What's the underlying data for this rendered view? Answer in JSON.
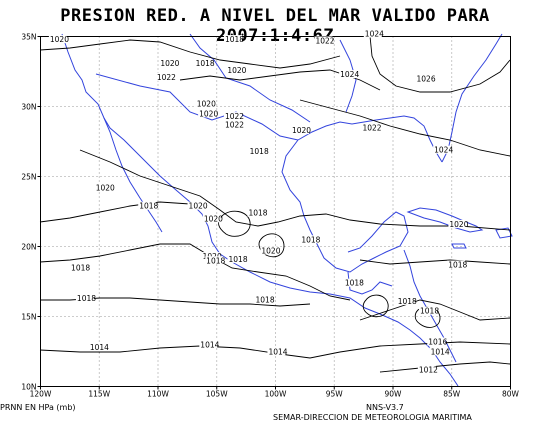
{
  "title": "PRESION RED. A NIVEL DEL MAR VALIDO PARA 2007:1:4:6Z",
  "footer": {
    "units": "PRNN EN HPa (mb)",
    "model": "NNS-V3.7",
    "credit": "SEMAR-DIRECCION DE METEOROLOGIA MARITIMA"
  },
  "map": {
    "lon_range": [
      -120,
      -80
    ],
    "lat_range": [
      10,
      35
    ],
    "lon_ticks": [
      "120W",
      "115W",
      "110W",
      "105W",
      "100W",
      "95W",
      "90W",
      "85W",
      "80W"
    ],
    "lat_ticks": [
      "10N",
      "15N",
      "20N",
      "25N",
      "30N",
      "35N"
    ],
    "grid": true,
    "coastline_color": "#3344dd",
    "contour_color": "#000000",
    "isobar_labels": [
      {
        "text": "1020",
        "lon": -119.2,
        "lat": 34.6
      },
      {
        "text": "1018",
        "lon": -104.3,
        "lat": 34.6
      },
      {
        "text": "1022",
        "lon": -96.6,
        "lat": 34.5
      },
      {
        "text": "1024",
        "lon": -92.4,
        "lat": 35.0
      },
      {
        "text": "1020",
        "lon": -109.8,
        "lat": 32.9
      },
      {
        "text": "1018",
        "lon": -106.8,
        "lat": 32.9
      },
      {
        "text": "1020",
        "lon": -104.1,
        "lat": 32.4
      },
      {
        "text": "1024",
        "lon": -94.5,
        "lat": 32.1
      },
      {
        "text": "1026",
        "lon": -88.0,
        "lat": 31.8
      },
      {
        "text": "1022",
        "lon": -110.1,
        "lat": 31.9
      },
      {
        "text": "1020",
        "lon": -106.7,
        "lat": 30.0
      },
      {
        "text": "1020",
        "lon": -106.5,
        "lat": 29.3
      },
      {
        "text": "1022",
        "lon": -104.3,
        "lat": 29.1
      },
      {
        "text": "1022",
        "lon": -104.3,
        "lat": 28.5
      },
      {
        "text": "1020",
        "lon": -98.6,
        "lat": 28.1
      },
      {
        "text": "1022",
        "lon": -92.6,
        "lat": 28.3
      },
      {
        "text": "1018",
        "lon": -102.2,
        "lat": 26.6
      },
      {
        "text": "1024",
        "lon": -86.5,
        "lat": 26.7
      },
      {
        "text": "1020",
        "lon": -115.3,
        "lat": 24.0
      },
      {
        "text": "1018",
        "lon": -111.6,
        "lat": 22.7
      },
      {
        "text": "1020",
        "lon": -107.4,
        "lat": 22.7
      },
      {
        "text": "1020",
        "lon": -106.1,
        "lat": 21.8
      },
      {
        "text": "1018",
        "lon": -102.3,
        "lat": 22.2
      },
      {
        "text": "1020",
        "lon": -85.2,
        "lat": 21.4
      },
      {
        "text": "1018",
        "lon": -97.8,
        "lat": 20.3
      },
      {
        "text": "1020",
        "lon": -101.2,
        "lat": 19.5
      },
      {
        "text": "1020",
        "lon": -106.2,
        "lat": 19.1
      },
      {
        "text": "1018",
        "lon": -105.9,
        "lat": 18.8
      },
      {
        "text": "1018",
        "lon": -104.0,
        "lat": 18.9
      },
      {
        "text": "1018",
        "lon": -117.4,
        "lat": 18.3
      },
      {
        "text": "1018",
        "lon": -85.3,
        "lat": 18.5
      },
      {
        "text": "1018",
        "lon": -94.1,
        "lat": 17.2
      },
      {
        "text": "1018",
        "lon": -101.7,
        "lat": 16.0
      },
      {
        "text": "1018",
        "lon": -116.9,
        "lat": 16.1
      },
      {
        "text": "1018",
        "lon": -89.6,
        "lat": 15.9
      },
      {
        "text": "1018",
        "lon": -87.7,
        "lat": 15.2
      },
      {
        "text": "1014",
        "lon": -115.8,
        "lat": 12.6
      },
      {
        "text": "1014",
        "lon": -106.4,
        "lat": 12.8
      },
      {
        "text": "1014",
        "lon": -100.6,
        "lat": 12.3
      },
      {
        "text": "1016",
        "lon": -87.0,
        "lat": 13.0
      },
      {
        "text": "1014",
        "lon": -86.8,
        "lat": 12.3
      },
      {
        "text": "1012",
        "lon": -87.8,
        "lat": 11.0
      }
    ]
  }
}
